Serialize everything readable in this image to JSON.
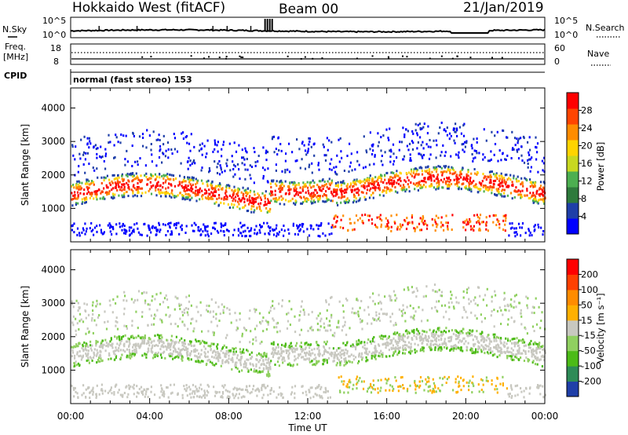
{
  "header": {
    "station": "Hokkaido West (fitACF)",
    "beam": "Beam 00",
    "date": "21/Jan/2019"
  },
  "noise_panel": {
    "left_label": "N.Sky",
    "right_label": "N.Search",
    "left_ticks": [
      "10^5",
      "10^0"
    ],
    "right_ticks": [
      "10^5",
      "10^0"
    ]
  },
  "freq_panel": {
    "left_label_1": "Freq.",
    "left_label_2": "[MHz]",
    "right_label": "Nave",
    "left_ticks": [
      "18",
      "8"
    ],
    "right_ticks": [
      "60",
      "0"
    ]
  },
  "cpid_panel": {
    "label": "CPID",
    "text": "normal (fast stereo) 153"
  },
  "power_panel": {
    "ylabel": "Slant Range [km]",
    "yticks": [
      "4000",
      "3000",
      "2000",
      "1000"
    ],
    "colorbar_label": "Power [dB]",
    "colorbar_ticks": [
      "28",
      "24",
      "20",
      "16",
      "12",
      "8",
      "4"
    ],
    "colors": [
      "#0000ff",
      "#1f3fa8",
      "#2e7a3c",
      "#4caf50",
      "#c8d820",
      "#ffd400",
      "#ff8c00",
      "#ff4500",
      "#ff0000"
    ]
  },
  "velocity_panel": {
    "ylabel": "Slant Range [km]",
    "yticks": [
      "4000",
      "3000",
      "2000",
      "1000"
    ],
    "colorbar_label": "Velocity [m s⁻¹]",
    "colorbar_ticks": [
      "200",
      "100",
      "50",
      "15",
      "-15",
      "-50",
      "-100",
      "-200"
    ],
    "colors": [
      "#1f3fa8",
      "#2e8b57",
      "#4cbb17",
      "#90d060",
      "#c8c8c0",
      "#ffb000",
      "#ff8c00",
      "#ff4000",
      "#ff0000"
    ]
  },
  "time_axis": {
    "label": "Time UT",
    "ticks": [
      "00:00",
      "04:00",
      "08:00",
      "12:00",
      "16:00",
      "20:00",
      "00:00"
    ]
  }
}
